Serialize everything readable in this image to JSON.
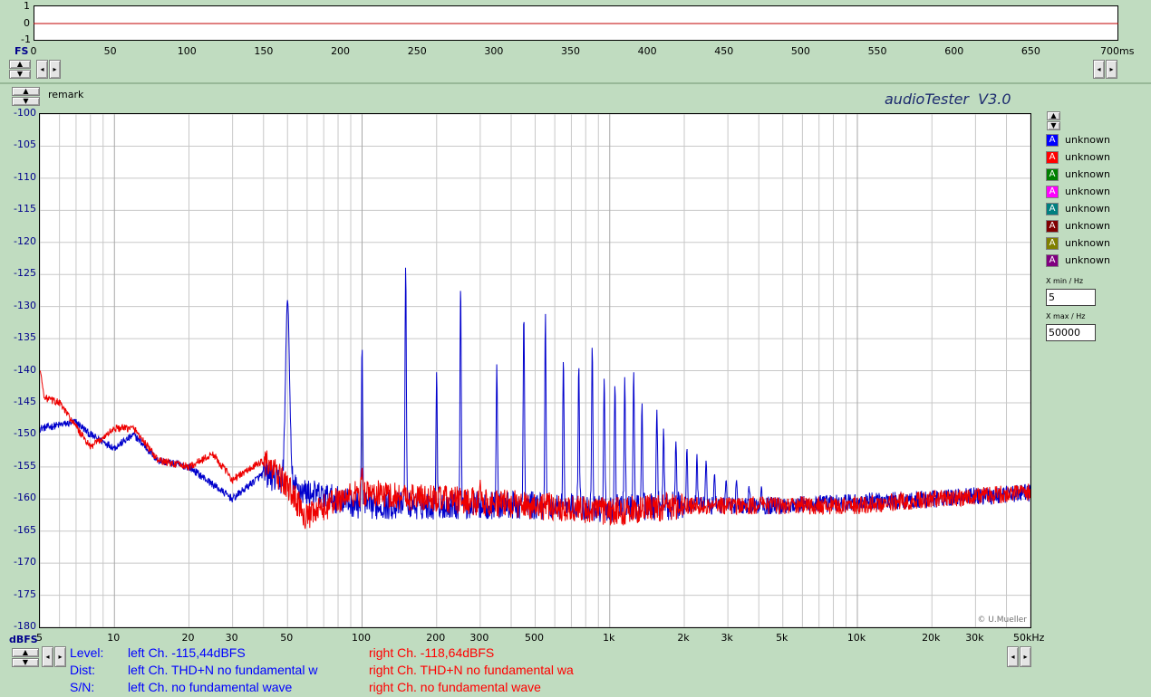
{
  "osc": {
    "y_ticks": [
      "1",
      "0",
      "-1"
    ],
    "unit_label": "FS",
    "x_ticks": [
      "0",
      "50",
      "100",
      "150",
      "200",
      "250",
      "300",
      "350",
      "400",
      "450",
      "500",
      "550",
      "600",
      "650",
      "700ms"
    ]
  },
  "header": {
    "remark": "remark",
    "app_title": "audioTester  V3.0"
  },
  "spectrum": {
    "y_unit": "dBFS",
    "x_unit": "50kHz",
    "copyright": "© U.Mueller"
  },
  "legend": [
    {
      "glyph": "A",
      "label": "unknown",
      "color": "#0000ff"
    },
    {
      "glyph": "A",
      "label": "unknown",
      "color": "#ff0000"
    },
    {
      "glyph": "A",
      "label": "unknown",
      "color": "#008000"
    },
    {
      "glyph": "A",
      "label": "unknown",
      "color": "#ff00ff"
    },
    {
      "glyph": "A",
      "label": "unknown",
      "color": "#008080"
    },
    {
      "glyph": "A",
      "label": "unknown",
      "color": "#800000"
    },
    {
      "glyph": "A",
      "label": "unknown",
      "color": "#808000"
    },
    {
      "glyph": "A",
      "label": "unknown",
      "color": "#800080"
    }
  ],
  "range": {
    "xmin_label": "X min / Hz",
    "xmin_value": "5",
    "xmax_label": "X max / Hz",
    "xmax_value": "50000"
  },
  "info": {
    "level_label": "Level:",
    "dist_label": "Dist:",
    "sn_label": "S/N:",
    "left_level": "left Ch. -115,44dBFS",
    "left_dist": "left Ch. THD+N  no fundamental w",
    "left_sn": "left Ch.  no fundamental wave",
    "right_level": "right Ch. -118,64dBFS",
    "right_dist": "right Ch. THD+N  no fundamental wa",
    "right_sn": "right Ch.  no fundamental wave",
    "left_color": "#0000ff",
    "right_color": "#ff0000"
  },
  "chart_data": {
    "type": "line",
    "x_scale": "log",
    "xlim": [
      5,
      50000
    ],
    "ylim": [
      -180,
      -100
    ],
    "y_ticks": [
      -100,
      -105,
      -110,
      -115,
      -120,
      -125,
      -130,
      -135,
      -140,
      -145,
      -150,
      -155,
      -160,
      -165,
      -170,
      -175,
      -180
    ],
    "x_tick_values": [
      5,
      10,
      20,
      30,
      50,
      100,
      200,
      300,
      500,
      1000,
      2000,
      3000,
      5000,
      10000,
      20000,
      30000,
      50000
    ],
    "x_tick_labels": [
      "5",
      "10",
      "20",
      "30",
      "50",
      "100",
      "200",
      "300",
      "500",
      "1k",
      "2k",
      "3k",
      "5k",
      "10k",
      "20k",
      "30k",
      "50kHz"
    ],
    "grid": true,
    "series": [
      {
        "color": "#0000cc",
        "baseline": [
          [
            5,
            -149
          ],
          [
            7,
            -148
          ],
          [
            8,
            -150
          ],
          [
            10,
            -152
          ],
          [
            12,
            -150
          ],
          [
            15,
            -154
          ],
          [
            20,
            -155
          ],
          [
            30,
            -160
          ],
          [
            40,
            -156
          ],
          [
            60,
            -159
          ],
          [
            100,
            -161
          ],
          [
            200,
            -161
          ],
          [
            500,
            -161
          ],
          [
            1000,
            -161.5
          ],
          [
            2000,
            -161
          ],
          [
            5000,
            -161
          ],
          [
            10000,
            -160.5
          ],
          [
            20000,
            -160
          ],
          [
            50000,
            -159
          ]
        ],
        "peaks": [
          [
            50,
            -129
          ],
          [
            100,
            -136
          ],
          [
            150,
            -123.3
          ],
          [
            200,
            -140
          ],
          [
            250,
            -126.5
          ],
          [
            350,
            -139
          ],
          [
            450,
            -131
          ],
          [
            550,
            -131
          ],
          [
            650,
            -138
          ],
          [
            750,
            -139
          ],
          [
            850,
            -136
          ],
          [
            950,
            -141
          ],
          [
            1050,
            -142
          ],
          [
            1150,
            -141
          ],
          [
            1250,
            -140
          ],
          [
            1350,
            -145
          ],
          [
            1550,
            -146
          ],
          [
            1650,
            -149
          ],
          [
            1850,
            -151
          ],
          [
            2050,
            -152
          ],
          [
            2250,
            -153
          ],
          [
            2450,
            -154
          ],
          [
            2650,
            -156
          ],
          [
            2950,
            -157
          ],
          [
            3250,
            -157
          ],
          [
            3650,
            -158
          ],
          [
            4100,
            -158
          ]
        ]
      },
      {
        "color": "#ee0000",
        "baseline": [
          [
            5,
            -144
          ],
          [
            6,
            -145
          ],
          [
            8,
            -152
          ],
          [
            10,
            -149
          ],
          [
            12,
            -149
          ],
          [
            15,
            -154
          ],
          [
            20,
            -155
          ],
          [
            25,
            -153
          ],
          [
            30,
            -157
          ],
          [
            40,
            -154
          ],
          [
            50,
            -158
          ],
          [
            60,
            -163
          ],
          [
            80,
            -160
          ],
          [
            100,
            -159
          ],
          [
            200,
            -160
          ],
          [
            500,
            -161
          ],
          [
            1000,
            -162
          ],
          [
            2000,
            -161
          ],
          [
            5000,
            -161
          ],
          [
            10000,
            -161
          ],
          [
            20000,
            -160
          ],
          [
            50000,
            -159
          ]
        ],
        "peaks": [
          [
            5,
            -140
          ],
          [
            100,
            -155
          ],
          [
            300,
            -157
          ]
        ]
      }
    ]
  }
}
